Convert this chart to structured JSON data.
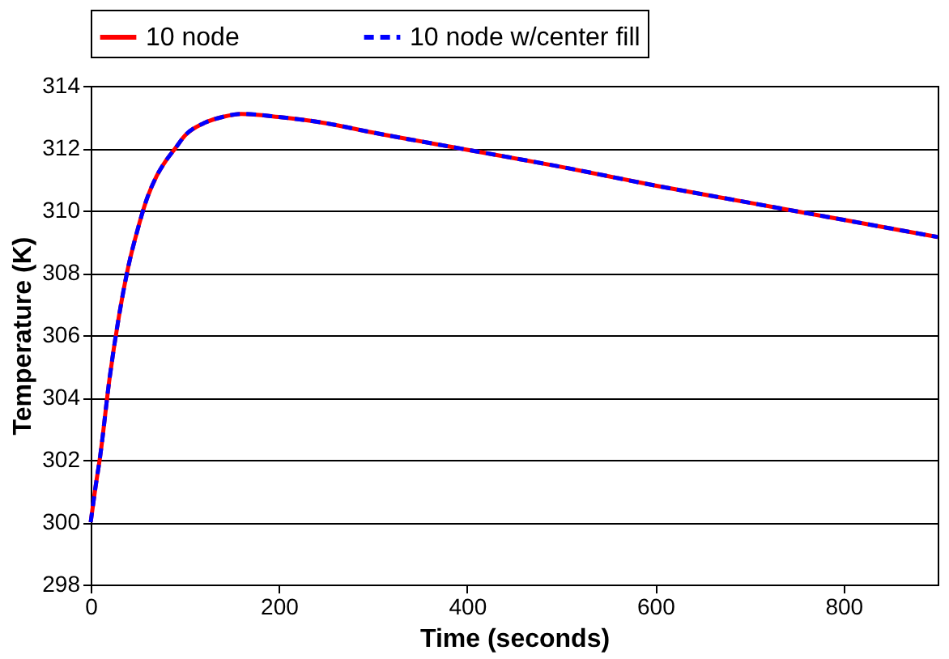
{
  "chart_data": {
    "type": "line",
    "xlabel": "Time (seconds)",
    "ylabel": "Temperature (K)",
    "x": [
      0,
      5,
      10,
      20,
      30,
      40,
      50,
      60,
      70,
      80,
      90,
      100,
      120,
      140,
      160,
      200,
      250,
      300,
      400,
      500,
      600,
      700,
      800,
      900
    ],
    "series": [
      {
        "name": "10 node",
        "color": "#ff0000",
        "line_style": "solid",
        "values": [
          300,
          301.1,
          302.1,
          304.6,
          306.6,
          308.2,
          309.4,
          310.4,
          311.1,
          311.6,
          312.0,
          312.4,
          312.8,
          313.0,
          313.1,
          313.0,
          312.8,
          312.5,
          311.95,
          311.4,
          310.8,
          310.25,
          309.7,
          309.15
        ]
      },
      {
        "name": "10 node w/center fill",
        "color": "#0000ff",
        "line_style": "dashed",
        "values": [
          300,
          301.1,
          302.1,
          304.6,
          306.6,
          308.2,
          309.4,
          310.4,
          311.1,
          311.6,
          312.0,
          312.4,
          312.8,
          313.0,
          313.1,
          313.0,
          312.8,
          312.5,
          311.95,
          311.4,
          310.8,
          310.25,
          309.7,
          309.15
        ]
      }
    ],
    "xlim": [
      0,
      900
    ],
    "xticks": [
      0,
      200,
      400,
      600,
      800
    ],
    "ylim": [
      298,
      314
    ],
    "yticks": [
      298,
      300,
      302,
      304,
      306,
      308,
      310,
      312,
      314
    ],
    "grid": "y",
    "legend": "top",
    "marker": "none"
  }
}
